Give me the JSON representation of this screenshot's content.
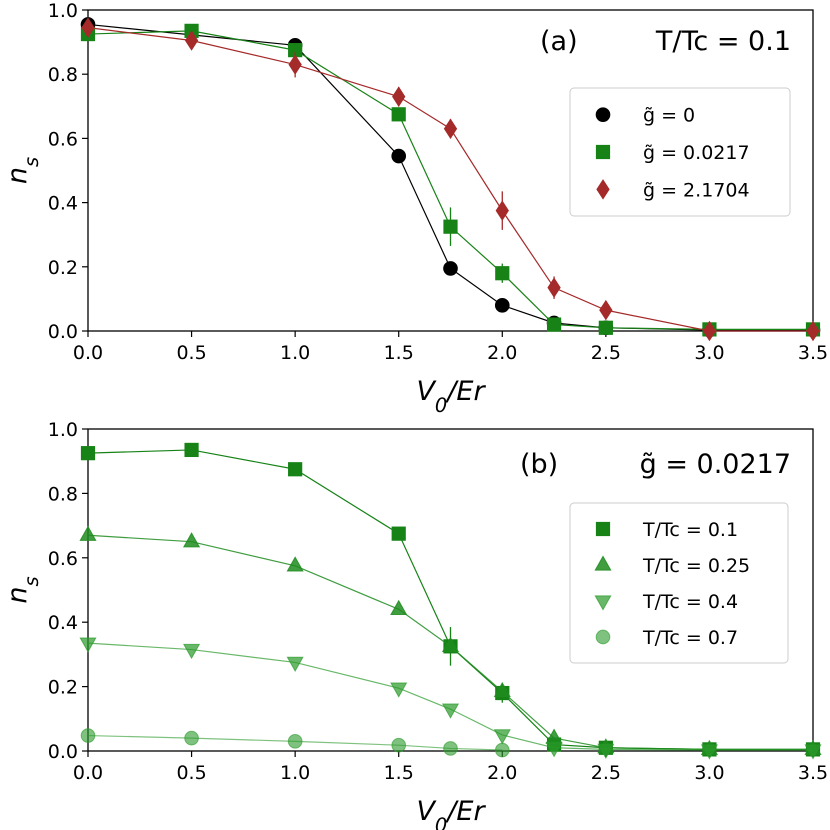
{
  "chart_data": [
    {
      "panel": "(a)",
      "annotation": "T/T_c = 0.1",
      "type": "scatter",
      "xlabel": "V_0/E_r",
      "ylabel": "n_s",
      "xlim": [
        0,
        3.5
      ],
      "ylim": [
        0,
        1.0
      ],
      "xticks": [
        "0.0",
        "0.5",
        "1.0",
        "1.5",
        "2.0",
        "2.5",
        "3.0",
        "3.5"
      ],
      "yticks": [
        "0.0",
        "0.2",
        "0.4",
        "0.6",
        "0.8",
        "1.0"
      ],
      "legend_position": "right",
      "series": [
        {
          "name": "g̃ = 0",
          "color": "#000000",
          "marker": "circle",
          "x": [
            0,
            1.0,
            1.5,
            1.75,
            2.0,
            2.25,
            2.5,
            3.0,
            3.5
          ],
          "y": [
            0.955,
            0.89,
            0.545,
            0.195,
            0.08,
            0.025,
            0.01,
            0.003,
            0.003
          ],
          "err": [
            0,
            0,
            0,
            0,
            0,
            0,
            0,
            0,
            0
          ]
        },
        {
          "name": "g̃ = 0.0217",
          "color": "#178317",
          "marker": "square",
          "x": [
            0,
            0.5,
            1.0,
            1.5,
            1.75,
            2.0,
            2.25,
            2.5,
            3.0,
            3.5
          ],
          "y": [
            0.925,
            0.935,
            0.875,
            0.675,
            0.325,
            0.18,
            0.02,
            0.01,
            0.005,
            0.005
          ],
          "err": [
            0,
            0,
            0,
            0,
            0.06,
            0.03,
            0,
            0,
            0,
            0
          ]
        },
        {
          "name": "g̃ = 2.1704",
          "color": "#a52a2a",
          "marker": "diamond",
          "x": [
            0,
            0.5,
            1.0,
            1.5,
            1.75,
            2.0,
            2.25,
            2.5,
            3.0,
            3.5
          ],
          "y": [
            0.945,
            0.905,
            0.83,
            0.73,
            0.63,
            0.375,
            0.135,
            0.065,
            0.0,
            0.0
          ],
          "err": [
            0,
            0,
            0.04,
            0.03,
            0.03,
            0.06,
            0.035,
            0.02,
            0,
            0
          ]
        }
      ]
    },
    {
      "panel": "(b)",
      "annotation": "g̃ = 0.0217",
      "type": "scatter",
      "xlabel": "V_0/E_r",
      "ylabel": "n_s",
      "xlim": [
        0,
        3.5
      ],
      "ylim": [
        0,
        1.0
      ],
      "xticks": [
        "0.0",
        "0.5",
        "1.0",
        "1.5",
        "2.0",
        "2.5",
        "3.0",
        "3.5"
      ],
      "yticks": [
        "0.0",
        "0.2",
        "0.4",
        "0.6",
        "0.8",
        "1.0"
      ],
      "legend_position": "right",
      "series": [
        {
          "name": "T/T_c = 0.1",
          "color": "#178317",
          "alpha": 1.0,
          "marker": "square",
          "x": [
            0,
            0.5,
            1.0,
            1.5,
            1.75,
            2.0,
            2.25,
            2.5,
            3.0,
            3.5
          ],
          "y": [
            0.925,
            0.935,
            0.875,
            0.675,
            0.325,
            0.18,
            0.02,
            0.01,
            0.005,
            0.005
          ],
          "err": [
            0,
            0,
            0,
            0,
            0.06,
            0.03,
            0,
            0,
            0,
            0
          ]
        },
        {
          "name": "T/T_c = 0.25",
          "color": "#1e8c1e",
          "alpha": 0.85,
          "marker": "triangle-up",
          "x": [
            0,
            0.5,
            1.0,
            1.5,
            1.75,
            2.0,
            2.25,
            2.5,
            3.0,
            3.5
          ],
          "y": [
            0.67,
            0.65,
            0.575,
            0.44,
            0.325,
            0.185,
            0.04,
            0.01,
            0.005,
            0.005
          ],
          "err": [
            0,
            0,
            0,
            0,
            0,
            0,
            0,
            0,
            0,
            0
          ]
        },
        {
          "name": "T/T_c = 0.4",
          "color": "#2a9a2a",
          "alpha": 0.7,
          "marker": "triangle-down",
          "x": [
            0,
            0.5,
            1.0,
            1.5,
            1.75,
            2.0,
            2.25,
            2.5,
            3.0,
            3.5
          ],
          "y": [
            0.335,
            0.315,
            0.275,
            0.195,
            0.13,
            0.05,
            0.01,
            0.005,
            0.003,
            0.003
          ],
          "err": [
            0,
            0,
            0,
            0,
            0,
            0,
            0,
            0,
            0,
            0
          ]
        },
        {
          "name": "T/T_c = 0.7",
          "color": "#2a9a2a",
          "alpha": 0.6,
          "marker": "circle",
          "x": [
            0,
            0.5,
            1.0,
            1.5,
            1.75,
            2.0
          ],
          "y": [
            0.048,
            0.04,
            0.03,
            0.018,
            0.008,
            0.003
          ],
          "err": [
            0,
            0,
            0,
            0,
            0,
            0
          ]
        }
      ]
    }
  ]
}
